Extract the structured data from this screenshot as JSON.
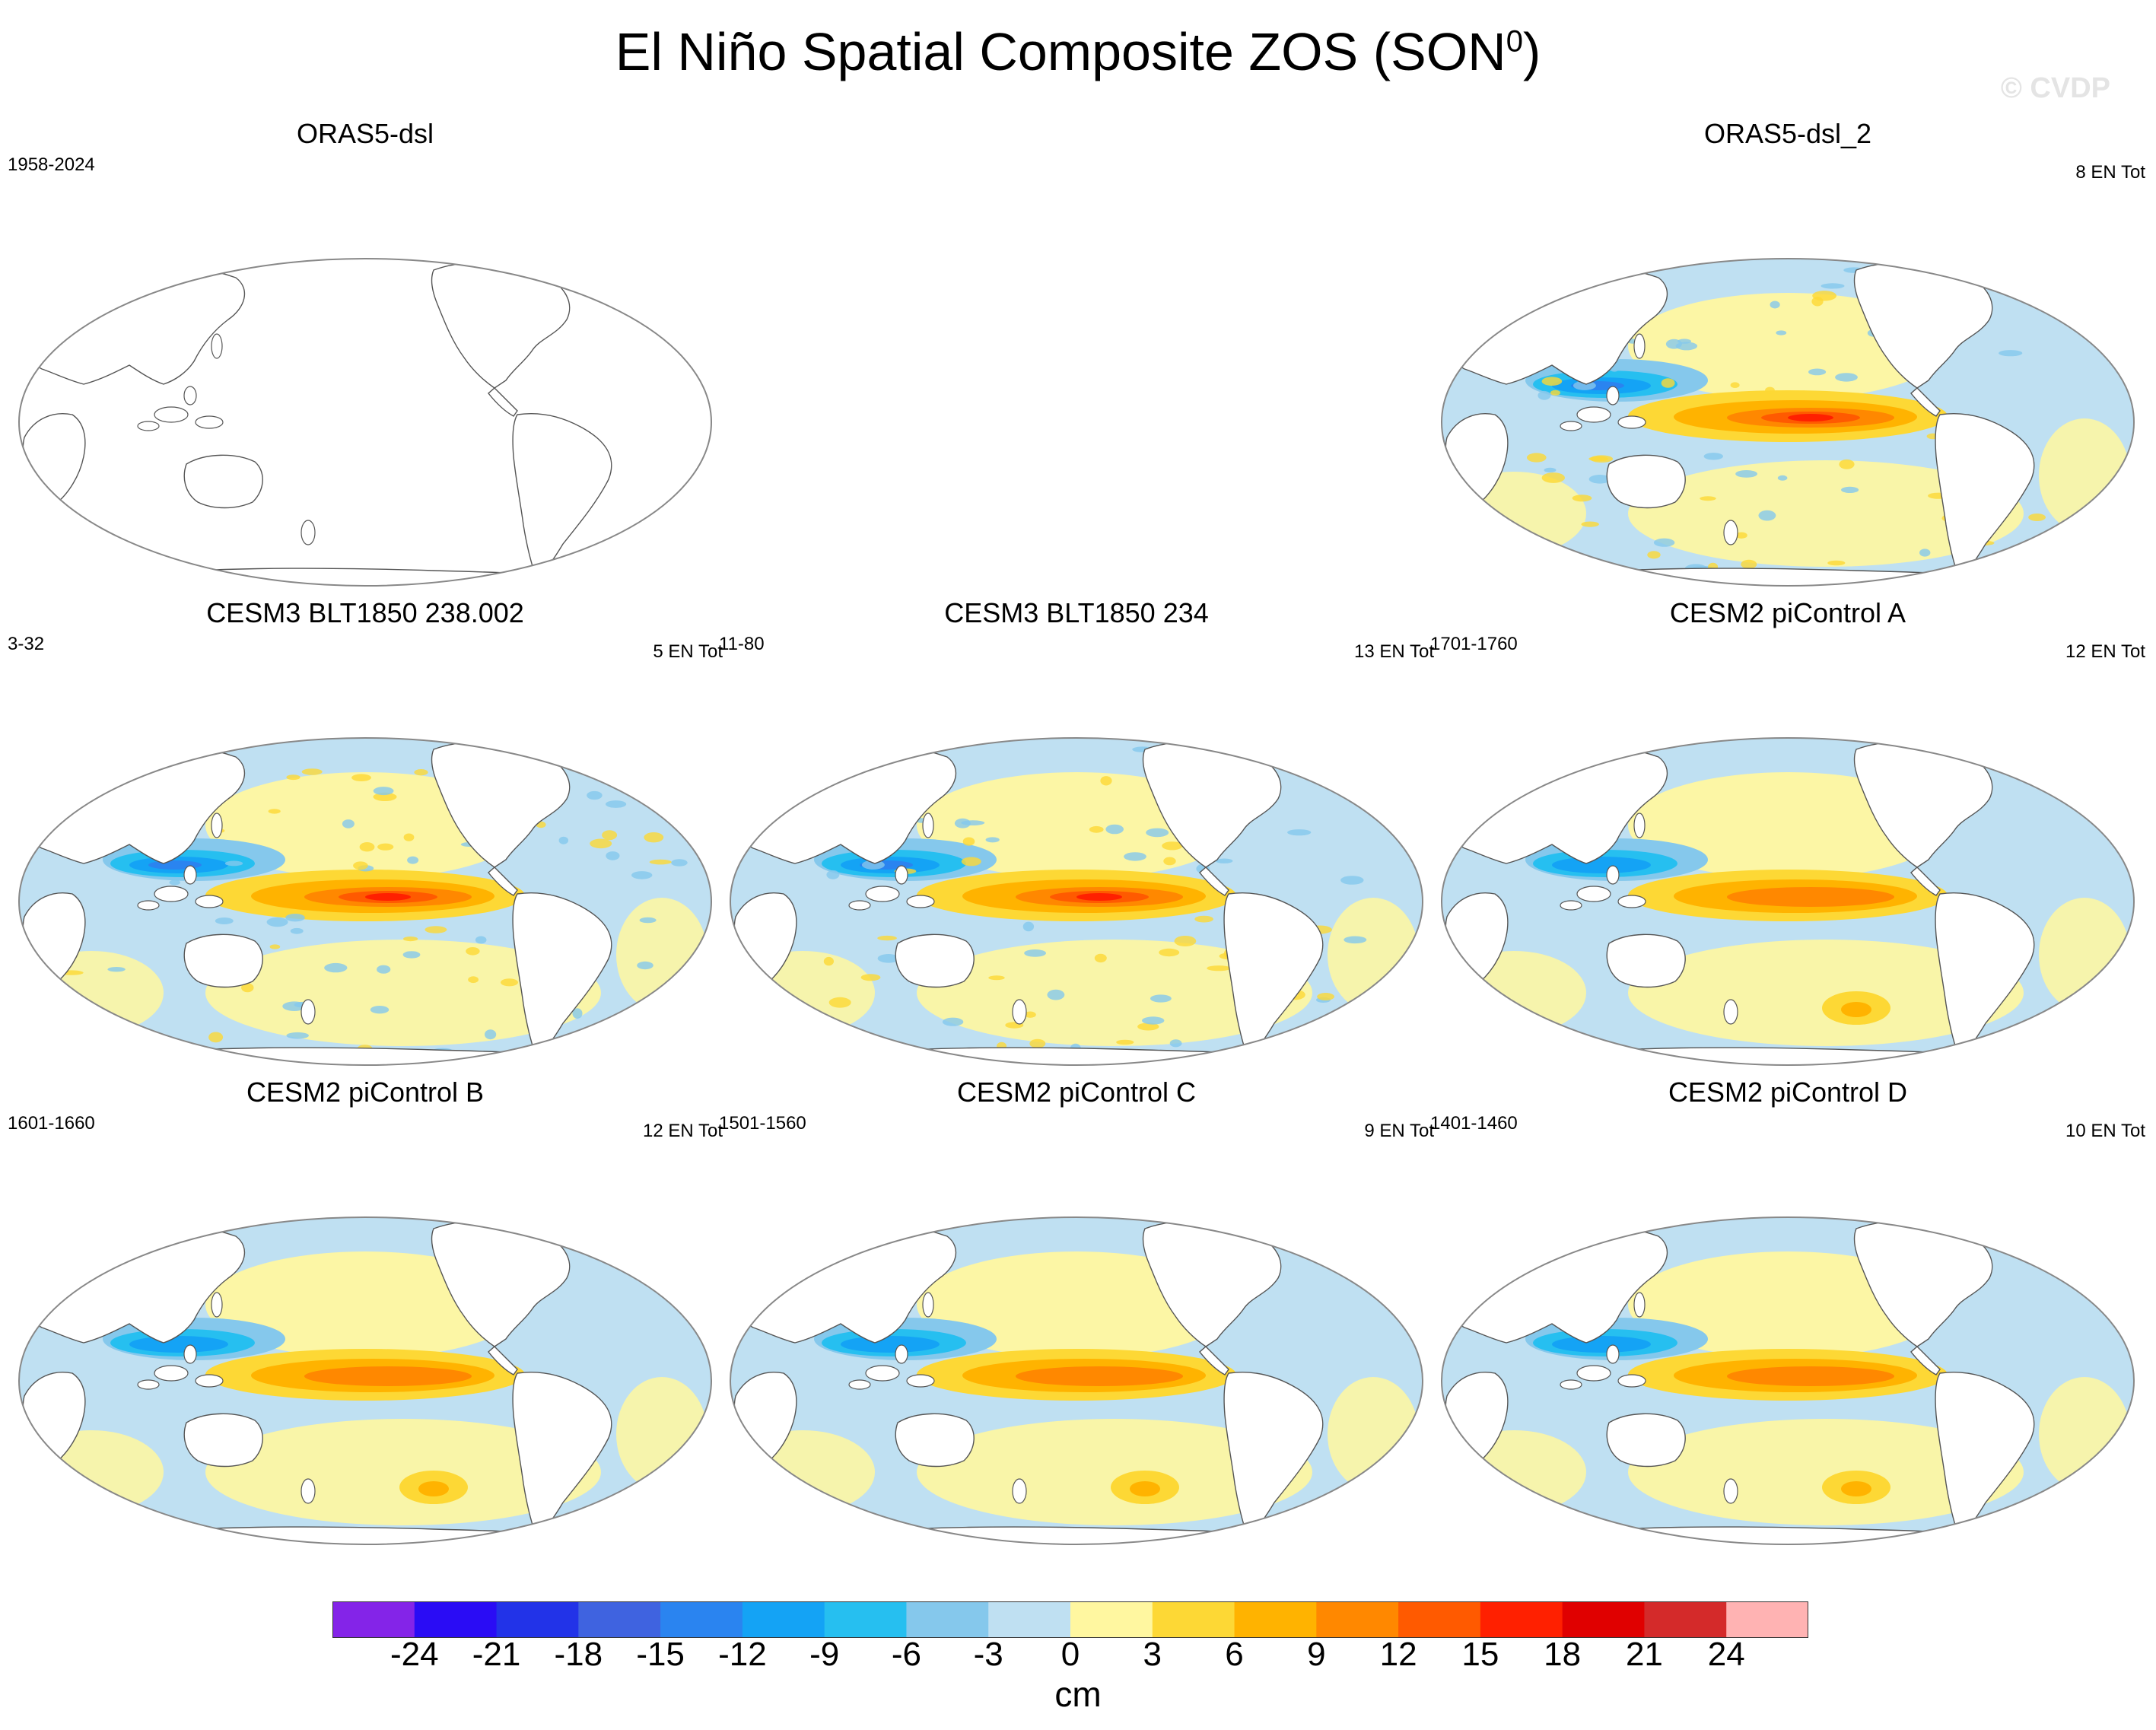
{
  "figure": {
    "title": "El Niño Spatial Composite ZOS (SON",
    "title_superscript": "0",
    "title_close": ")",
    "watermark": "© CVDP"
  },
  "panels": [
    {
      "title": "ORAS5-dsl",
      "left": "1958-2024",
      "right": "",
      "pattern": "empty"
    },
    {
      "title": "ORAS5-dsl_2",
      "left": "",
      "right": "8 EN Tot",
      "pattern": "obs"
    },
    {
      "title": "CESM3 BLT1850 238.002",
      "left": "3-32",
      "right": "5 EN Tot",
      "pattern": "strong"
    },
    {
      "title": "CESM3 BLT1850 234",
      "left": "11-80",
      "right": "13 EN Tot",
      "pattern": "strong"
    },
    {
      "title": "CESM2 piControl A",
      "left": "1701-1760",
      "right": "12 EN Tot",
      "pattern": "smooth"
    },
    {
      "title": "CESM2 piControl B",
      "left": "1601-1660",
      "right": "12 EN Tot",
      "pattern": "smooth"
    },
    {
      "title": "CESM2 piControl C",
      "left": "1501-1560",
      "right": "9 EN Tot",
      "pattern": "smooth"
    },
    {
      "title": "CESM2 piControl D",
      "left": "1401-1460",
      "right": "10 EN Tot",
      "pattern": "smooth"
    }
  ],
  "colorbar": {
    "unit": "cm",
    "labels": [
      "-24",
      "-21",
      "-18",
      "-15",
      "-12",
      "-9",
      "-6",
      "-3",
      "0",
      "3",
      "6",
      "9",
      "12",
      "15",
      "18",
      "21",
      "24"
    ],
    "colors": [
      "#8424e8",
      "#2a0cf5",
      "#2233e8",
      "#3f63e0",
      "#2a84f0",
      "#14a3f5",
      "#26bff0",
      "#85c8ec",
      "#bfe0f2",
      "#fff7a0",
      "#fdd835",
      "#ffb300",
      "#ff8800",
      "#ff5a00",
      "#ff2000",
      "#e00000",
      "#d42a2a",
      "#ffb3b3"
    ]
  }
}
